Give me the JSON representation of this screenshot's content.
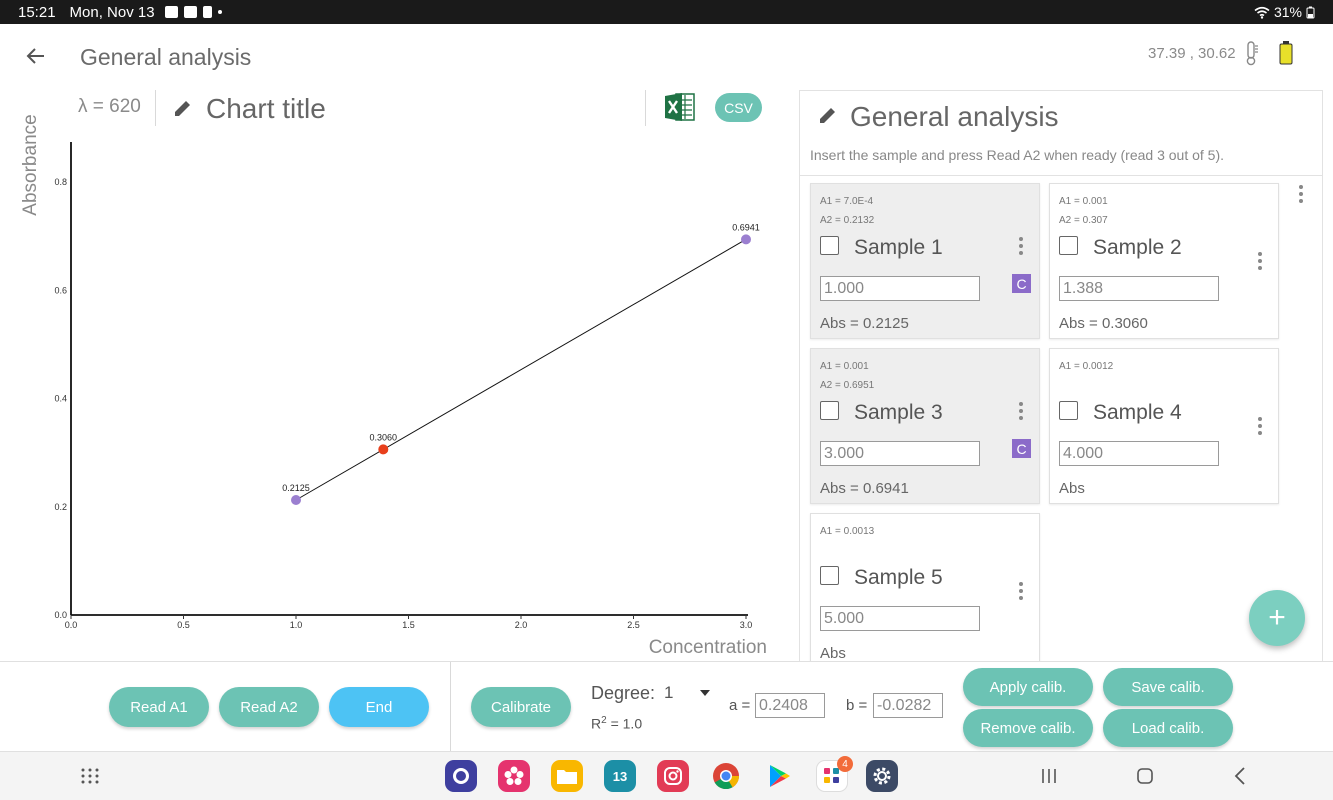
{
  "status_bar": {
    "time": "15:21",
    "date": "Mon, Nov 13",
    "battery": "31%"
  },
  "header": {
    "title": "General analysis",
    "coords": "37.39 ,  30.62"
  },
  "chart_panel": {
    "lambda": "λ = 620",
    "chart_title": "Chart title",
    "csv_label": "CSV"
  },
  "chart_data": {
    "type": "scatter",
    "xlabel": "Concentration",
    "ylabel": "Absorbance",
    "xlim": [
      0.0,
      3.0
    ],
    "ylim": [
      0.0,
      0.85
    ],
    "x_ticks": [
      "0.0",
      "0.5",
      "1.0",
      "1.5",
      "2.0",
      "2.5",
      "3.0"
    ],
    "y_ticks": [
      "0.0",
      "0.2",
      "0.4",
      "0.6",
      "0.8"
    ],
    "points": [
      {
        "x": 1.0,
        "y": 0.2125,
        "label": "0.2125",
        "color": "#9b7fd0"
      },
      {
        "x": 1.388,
        "y": 0.306,
        "label": "0.3060",
        "color": "#e8401c"
      },
      {
        "x": 3.0,
        "y": 0.6941,
        "label": "0.6941",
        "color": "#9b7fd0"
      }
    ],
    "fit_line": {
      "x": [
        1.0,
        3.0
      ],
      "y": [
        0.2125,
        0.6941
      ],
      "color": "#111111"
    }
  },
  "analysis_panel": {
    "title": "General analysis",
    "subtitle": "Insert the sample and press Read A2 when ready (read 3 out of 5).",
    "samples": [
      {
        "a1": "A1 = 7.0E-4",
        "a2": "A2 = 0.2132",
        "name": "Sample 1",
        "conc": "1.000",
        "abs": "Abs = 0.2125",
        "badge": "C",
        "read": true
      },
      {
        "a1": "A1 = 0.001",
        "a2": "A2 = 0.307",
        "name": "Sample 2",
        "conc": "1.388",
        "abs": "Abs = 0.3060",
        "badge": "",
        "read": false
      },
      {
        "a1": "A1 = 0.001",
        "a2": "A2 = 0.6951",
        "name": "Sample 3",
        "conc": "3.000",
        "abs": "Abs = 0.6941",
        "badge": "C",
        "read": true
      },
      {
        "a1": "A1 = 0.0012",
        "a2": "",
        "name": "Sample 4",
        "conc": "4.000",
        "abs": "Abs",
        "badge": "",
        "read": false
      },
      {
        "a1": "A1 = 0.0013",
        "a2": "",
        "name": "Sample 5",
        "conc": "5.000",
        "abs": "Abs",
        "badge": "",
        "read": false
      }
    ],
    "fab_label": "+"
  },
  "controls": {
    "read_a1": "Read A1",
    "read_a2": "Read A2",
    "end": "End",
    "calibrate": "Calibrate",
    "degree_label": "Degree:",
    "degree_value": "1",
    "r2_prefix": "R",
    "r2_exp": "2",
    "r2_value": " = 1.0",
    "a_label": "a =",
    "a_value": "0.2408",
    "b_label": "b =",
    "b_value": "-0.0282",
    "apply_calib": "Apply calib.",
    "save_calib": "Save calib.",
    "remove_calib": "Remove calib.",
    "load_calib": "Load calib."
  },
  "nav": {
    "calendar_day": "13",
    "notif_count": "4"
  },
  "colors": {
    "accent": "#6cc3b4",
    "end_button": "#4dc3f4",
    "badge": "#8b6bc9",
    "point_read": "#9b7fd0",
    "point_current": "#e8401c"
  }
}
